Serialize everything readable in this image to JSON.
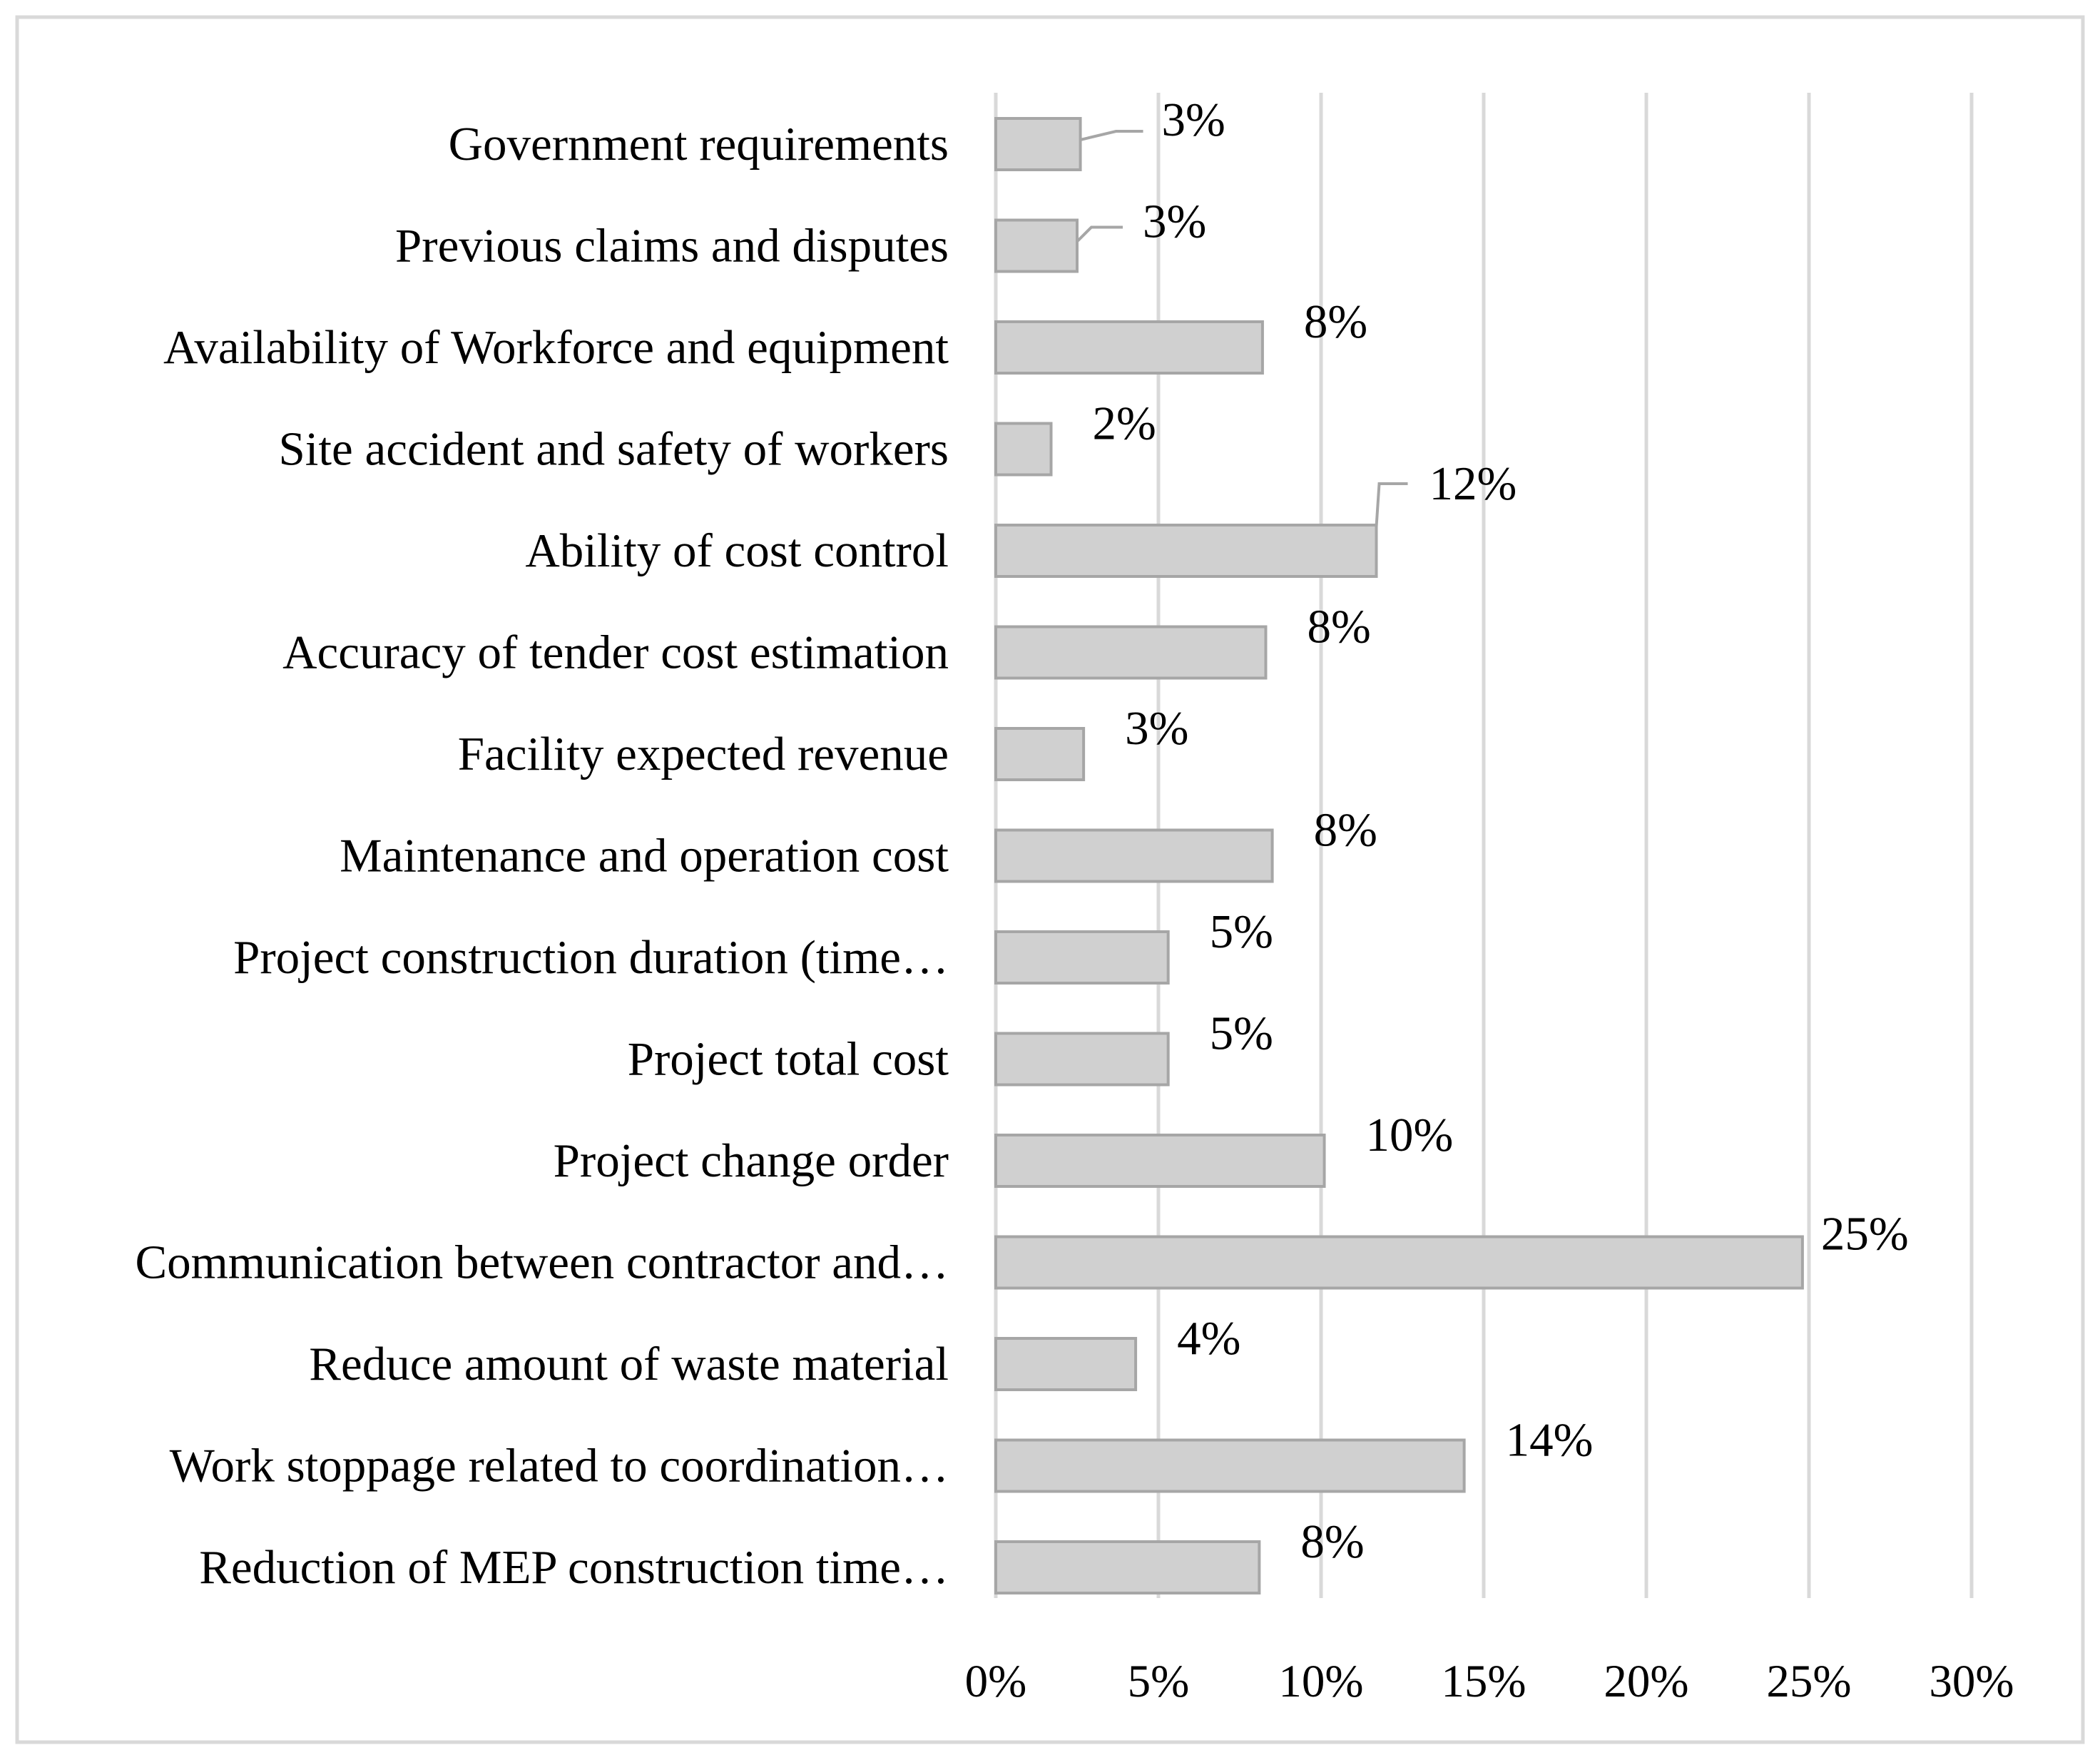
{
  "chart_data": {
    "type": "bar",
    "orientation": "horizontal",
    "title": "",
    "xlabel": "",
    "ylabel": "",
    "xlim": [
      0,
      30
    ],
    "x_ticks": [
      "0%",
      "5%",
      "10%",
      "15%",
      "20%",
      "25%",
      "30%"
    ],
    "grid": "vertical",
    "legend": "none",
    "categories": [
      "Government requirements",
      "Previous claims and disputes",
      "Availability of Workforce and equipment",
      "Site accident and safety of workers",
      "Ability of cost control",
      "Accuracy of tender cost estimation",
      "Facility expected revenue",
      "Maintenance and operation cost",
      "Project construction duration (time…",
      "Project total cost",
      "Project change order",
      "Communication between contractor and…",
      "Reduce amount of waste material",
      "Work stoppage related to coordination…",
      "Reduction of MEP construction time…"
    ],
    "values": [
      2.6,
      2.5,
      8.2,
      1.7,
      11.7,
      8.3,
      2.7,
      8.5,
      5.3,
      5.3,
      10.1,
      24.8,
      4.3,
      14.4,
      8.1
    ],
    "data_labels": [
      "3%",
      "3%",
      "8%",
      "2%",
      "12%",
      "8%",
      "3%",
      "8%",
      "5%",
      "5%",
      "10%",
      "25%",
      "4%",
      "14%",
      "8%"
    ],
    "colors": {
      "bar_fill": "#d0d0d0",
      "bar_stroke": "#a6a6a6",
      "grid": "#d9d9d9",
      "frame": "#d9d9d9",
      "leader": "#a6a6a6"
    }
  }
}
